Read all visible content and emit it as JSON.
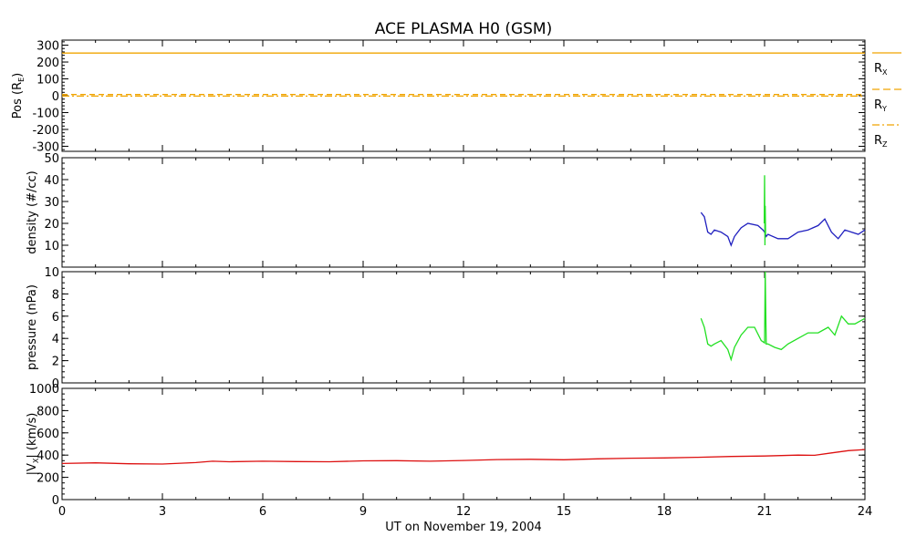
{
  "title": "ACE PLASMA H0 (GSM)",
  "xlabel": "UT on November 19, 2004",
  "colors": {
    "rx": "#f0a400",
    "density": "#1f1fbf",
    "pressure": "#22e022",
    "vx": "#dd1010",
    "axes": "#000000"
  },
  "chart_data": [
    {
      "type": "line",
      "panel": "position",
      "ylabel": "Pos (R",
      "ylabel_sub": "E",
      "ylabel_end": ")",
      "ylim": [
        -330,
        330
      ],
      "yticks": [
        "300",
        "200",
        "100",
        "0",
        "-100",
        "-200",
        "-300"
      ],
      "ytick_values": [
        300,
        200,
        100,
        0,
        -100,
        -200,
        -300
      ],
      "xlim": [
        0,
        24
      ],
      "series": [
        {
          "name": "R",
          "sub": "X",
          "style": "solid",
          "x": [
            0,
            24
          ],
          "y": [
            253,
            253
          ]
        },
        {
          "name": "R",
          "sub": "Y",
          "style": "dashed",
          "x": [
            0,
            24
          ],
          "y": [
            7,
            7
          ]
        },
        {
          "name": "R",
          "sub": "Z",
          "style": "dashdot",
          "x": [
            0,
            24
          ],
          "y": [
            -2,
            -2
          ]
        }
      ]
    },
    {
      "type": "line",
      "panel": "density",
      "ylabel": "density (#/cc)",
      "ylim": [
        0,
        50
      ],
      "yticks": [
        "50",
        "40",
        "30",
        "20",
        "10"
      ],
      "ytick_values": [
        50,
        40,
        30,
        20,
        10
      ],
      "xlim": [
        0,
        24
      ],
      "series": [
        {
          "x": [
            19.1,
            19.2,
            19.3,
            19.4,
            19.5,
            19.7,
            19.9,
            20.0,
            20.1,
            20.3,
            20.5,
            20.8,
            20.95,
            21.0,
            21.05,
            21.1,
            21.4,
            21.7,
            22.0,
            22.3,
            22.6,
            22.8,
            23.0,
            23.2,
            23.4,
            23.6,
            23.8,
            24.0
          ],
          "y": [
            25,
            23,
            16,
            15,
            17,
            16,
            14,
            10,
            14,
            18,
            20,
            19,
            17,
            16,
            14,
            15,
            13,
            13,
            16,
            17,
            19,
            22,
            16,
            13,
            17,
            16,
            15,
            17
          ]
        },
        {
          "x": [
            20.99,
            21.0,
            21.01,
            21.02,
            21.03
          ],
          "y": [
            20,
            42,
            10,
            28,
            15
          ]
        }
      ]
    },
    {
      "type": "line",
      "panel": "pressure",
      "ylabel": "pressure (nPa)",
      "ylim": [
        0,
        10
      ],
      "yticks": [
        "10",
        "8",
        "6",
        "4",
        "2",
        "0"
      ],
      "ytick_values": [
        10,
        8,
        6,
        4,
        2,
        0
      ],
      "xlim": [
        0,
        24
      ],
      "series": [
        {
          "x": [
            19.1,
            19.2,
            19.3,
            19.4,
            19.5,
            19.7,
            19.9,
            20.0,
            20.1,
            20.3,
            20.5,
            20.7,
            20.9,
            21.0,
            21.02,
            21.05,
            21.1,
            21.3,
            21.5,
            21.7,
            22.0,
            22.3,
            22.6,
            22.9,
            23.1,
            23.3,
            23.5,
            23.7,
            24.0
          ],
          "y": [
            5.8,
            5.0,
            3.5,
            3.3,
            3.5,
            3.8,
            3.0,
            2.1,
            3.2,
            4.3,
            5.0,
            5.0,
            3.8,
            3.6,
            10,
            3.5,
            3.5,
            3.2,
            3.0,
            3.5,
            4.0,
            4.5,
            4.5,
            5.0,
            4.3,
            6.0,
            5.3,
            5.3,
            5.8
          ]
        }
      ]
    },
    {
      "type": "line",
      "panel": "vx",
      "ylabel": "|V",
      "ylabel_sub": "X",
      "ylabel_end": "| (km/s)",
      "ylim": [
        0,
        1000
      ],
      "yticks": [
        "1000",
        "800",
        "600",
        "400",
        "200",
        "0"
      ],
      "ytick_values": [
        1000,
        800,
        600,
        400,
        200,
        0
      ],
      "xlim": [
        0,
        24
      ],
      "xticks": [
        "0",
        "3",
        "6",
        "9",
        "12",
        "15",
        "18",
        "21",
        "24"
      ],
      "xtick_values": [
        0,
        3,
        6,
        9,
        12,
        15,
        18,
        21,
        24
      ],
      "series": [
        {
          "x": [
            0,
            1,
            2,
            3,
            4,
            4.5,
            5,
            6,
            7,
            8,
            9,
            10,
            11,
            12,
            13,
            14,
            15,
            16,
            17,
            18,
            19,
            20,
            21,
            22,
            22.5,
            23,
            23.5,
            24
          ],
          "y": [
            325,
            330,
            322,
            320,
            333,
            345,
            340,
            345,
            342,
            340,
            348,
            350,
            345,
            352,
            360,
            362,
            358,
            366,
            372,
            375,
            380,
            388,
            392,
            400,
            398,
            420,
            440,
            450
          ]
        }
      ]
    }
  ]
}
